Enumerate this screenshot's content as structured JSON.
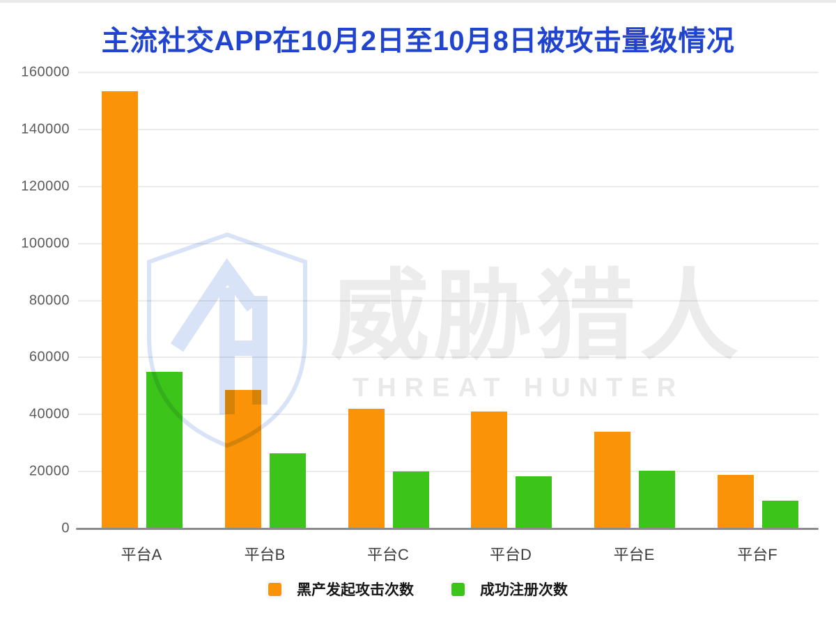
{
  "title": {
    "text": "主流社交APP在10月2日至10月8日被攻击量级情况",
    "color": "#2044d0"
  },
  "watermark": {
    "logo": "threat-hunter-shield-th-monogram",
    "cn_text": "威胁猎人",
    "en_text": "THREAT HUNTER",
    "shield_color": "#d9e3f7",
    "text_color": "#ececec"
  },
  "chart_data": {
    "type": "bar",
    "title": "主流社交APP在10月2日至10月8日被攻击量级情况",
    "categories": [
      "平台A",
      "平台B",
      "平台C",
      "平台D",
      "平台E",
      "平台F"
    ],
    "series": [
      {
        "key": "attacks",
        "name": "黑产发起攻击次数",
        "color": "#fa9308",
        "values": [
          153500,
          48500,
          42000,
          41000,
          34000,
          18800
        ]
      },
      {
        "key": "registrations",
        "name": "成功注册次数",
        "color": "#3dc41a",
        "values": [
          55000,
          26500,
          20000,
          18300,
          20300,
          9700
        ]
      }
    ],
    "xlabel": "",
    "ylabel": "",
    "ylim": [
      0,
      160000
    ],
    "yticks": [
      0,
      20000,
      40000,
      60000,
      80000,
      100000,
      120000,
      140000,
      160000
    ],
    "ytick_labels": [
      "0",
      "20000",
      "40000",
      "60000",
      "80000",
      "100000",
      "120000",
      "140000",
      "160000"
    ],
    "grid": true,
    "legend_position": "bottom",
    "colors": {
      "gridline": "#ebebeb",
      "axis_line": "#8b8b8b",
      "ytick_text": "#5a5a5a",
      "xtick_text": "#3c3c3c"
    }
  }
}
